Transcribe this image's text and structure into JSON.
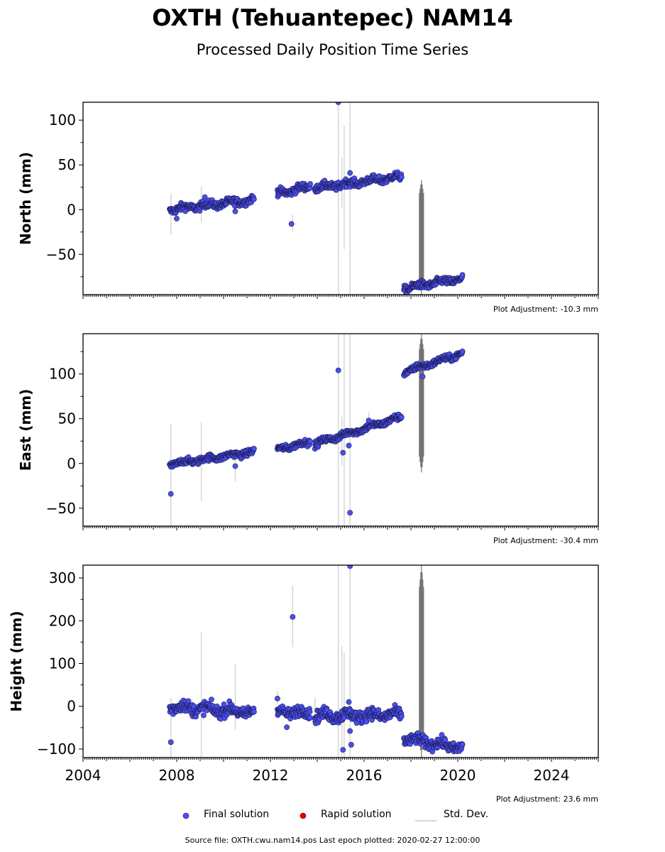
{
  "header": {
    "title": "OXTH (Tehuantepec) NAM14",
    "subtitle": "Processed Daily Position Time Series"
  },
  "legend": {
    "final": "Final solution",
    "rapid": "Rapid solution",
    "stddev": "Std. Dev."
  },
  "footer": {
    "source": "Source file: OXTH.cwu.nam14.pos  Last epoch plotted: 2020-02-27 12:00:00"
  },
  "colors": {
    "final_fill": "#4b4ef2",
    "final_edge": "#1a1a4a",
    "rapid_fill": "#e00000",
    "stddev_light": "#d6d6d6",
    "stddev_dark": "#5e5e5e"
  },
  "chart_data": [
    {
      "type": "scatter",
      "ylabel": "North (mm)",
      "ylim": [
        -95,
        120
      ],
      "yticks": [
        -50,
        0,
        50,
        100
      ],
      "xlim": [
        2004,
        2026
      ],
      "xticks": [
        2004,
        2008,
        2012,
        2016,
        2020,
        2024
      ],
      "adjustment": "Plot Adjustment: -10.3 mm",
      "segments": [
        {
          "x0": 2007.7,
          "x1": 2011.3,
          "y0": 0,
          "y1": 11,
          "noise": 3
        },
        {
          "x0": 2012.3,
          "x1": 2013.7,
          "y0": 18,
          "y1": 26,
          "noise": 3
        },
        {
          "x0": 2013.9,
          "x1": 2017.6,
          "y0": 24,
          "y1": 37,
          "noise": 3
        },
        {
          "x0": 2017.7,
          "x1": 2020.2,
          "y0": -88,
          "y1": -77,
          "noise": 3
        }
      ],
      "outliers": [
        [
          2008.0,
          -10
        ],
        [
          2009.2,
          14
        ],
        [
          2010.5,
          -2
        ],
        [
          2012.9,
          -16
        ],
        [
          2014.9,
          120
        ],
        [
          2015.4,
          41
        ]
      ],
      "errorbars": [
        [
          2007.75,
          -28,
          18
        ],
        [
          2009.05,
          -14,
          26
        ],
        [
          2012.95,
          -24,
          -6
        ],
        [
          2014.9,
          -95,
          120
        ],
        [
          2015.05,
          2,
          58
        ],
        [
          2015.15,
          -44,
          94
        ],
        [
          2015.4,
          -95,
          120
        ]
      ],
      "dark_band": {
        "x": 2018.45,
        "lo": -95,
        "hi": 33
      }
    },
    {
      "type": "scatter",
      "ylabel": "East (mm)",
      "ylim": [
        -70,
        145
      ],
      "yticks": [
        -50,
        0,
        50,
        100
      ],
      "xlim": [
        2004,
        2026
      ],
      "xticks": [
        2004,
        2008,
        2012,
        2016,
        2020,
        2024
      ],
      "adjustment": "Plot Adjustment: -30.4 mm",
      "segments": [
        {
          "x0": 2007.7,
          "x1": 2011.3,
          "y0": -1,
          "y1": 13,
          "noise": 2.5
        },
        {
          "x0": 2012.3,
          "x1": 2013.7,
          "y0": 16,
          "y1": 24,
          "noise": 2.5
        },
        {
          "x0": 2013.9,
          "x1": 2017.6,
          "y0": 22,
          "y1": 52,
          "noise": 2.5
        },
        {
          "x0": 2017.7,
          "x1": 2020.2,
          "y0": 102,
          "y1": 123,
          "noise": 2.5
        }
      ],
      "outliers": [
        [
          2007.75,
          -34
        ],
        [
          2010.5,
          -3
        ],
        [
          2014.9,
          104
        ],
        [
          2015.1,
          12
        ],
        [
          2015.35,
          20
        ],
        [
          2015.4,
          -55
        ],
        [
          2016.2,
          48
        ],
        [
          2018.5,
          97
        ]
      ],
      "errorbars": [
        [
          2007.75,
          -70,
          44
        ],
        [
          2009.05,
          -42,
          46
        ],
        [
          2010.5,
          -20,
          8
        ],
        [
          2014.9,
          -70,
          145
        ],
        [
          2015.05,
          -2,
          52
        ],
        [
          2015.15,
          -70,
          145
        ],
        [
          2015.4,
          -70,
          145
        ],
        [
          2016.2,
          36,
          57
        ]
      ],
      "dark_band": {
        "x": 2018.45,
        "lo": -10,
        "hi": 145
      }
    },
    {
      "type": "scatter",
      "ylabel": "Height (mm)",
      "ylim": [
        -120,
        330
      ],
      "yticks": [
        -100,
        0,
        100,
        200,
        300
      ],
      "xlim": [
        2004,
        2026
      ],
      "xticks": [
        2004,
        2008,
        2012,
        2016,
        2020,
        2024
      ],
      "xticklabels": [
        "2004",
        "2008",
        "2012",
        "2016",
        "2020",
        "2024"
      ],
      "adjustment": "Plot Adjustment: 23.6 mm",
      "segments": [
        {
          "x0": 2007.7,
          "x1": 2011.3,
          "y0": 0,
          "y1": -15,
          "noise": 10
        },
        {
          "x0": 2012.3,
          "x1": 2013.7,
          "y0": -12,
          "y1": -15,
          "noise": 9
        },
        {
          "x0": 2013.9,
          "x1": 2017.6,
          "y0": -22,
          "y1": -20,
          "noise": 10
        },
        {
          "x0": 2017.7,
          "x1": 2020.2,
          "y0": -75,
          "y1": -98,
          "noise": 9
        }
      ],
      "outliers": [
        [
          2007.75,
          -84
        ],
        [
          2012.3,
          18
        ],
        [
          2012.7,
          -49
        ],
        [
          2012.95,
          209
        ],
        [
          2015.1,
          -102
        ],
        [
          2015.35,
          10
        ],
        [
          2015.4,
          328
        ],
        [
          2015.4,
          -58
        ],
        [
          2015.45,
          -90
        ]
      ],
      "errorbars": [
        [
          2007.75,
          -120,
          20
        ],
        [
          2009.05,
          -120,
          175
        ],
        [
          2010.5,
          -55,
          100
        ],
        [
          2012.95,
          138,
          282
        ],
        [
          2013.9,
          -40,
          20
        ],
        [
          2014.9,
          -120,
          330
        ],
        [
          2015.05,
          -120,
          140
        ],
        [
          2015.15,
          -120,
          125
        ],
        [
          2015.4,
          -120,
          330
        ],
        [
          2012.3,
          5,
          35
        ]
      ],
      "dark_band": {
        "x": 2018.45,
        "lo": -120,
        "hi": 330
      }
    }
  ]
}
